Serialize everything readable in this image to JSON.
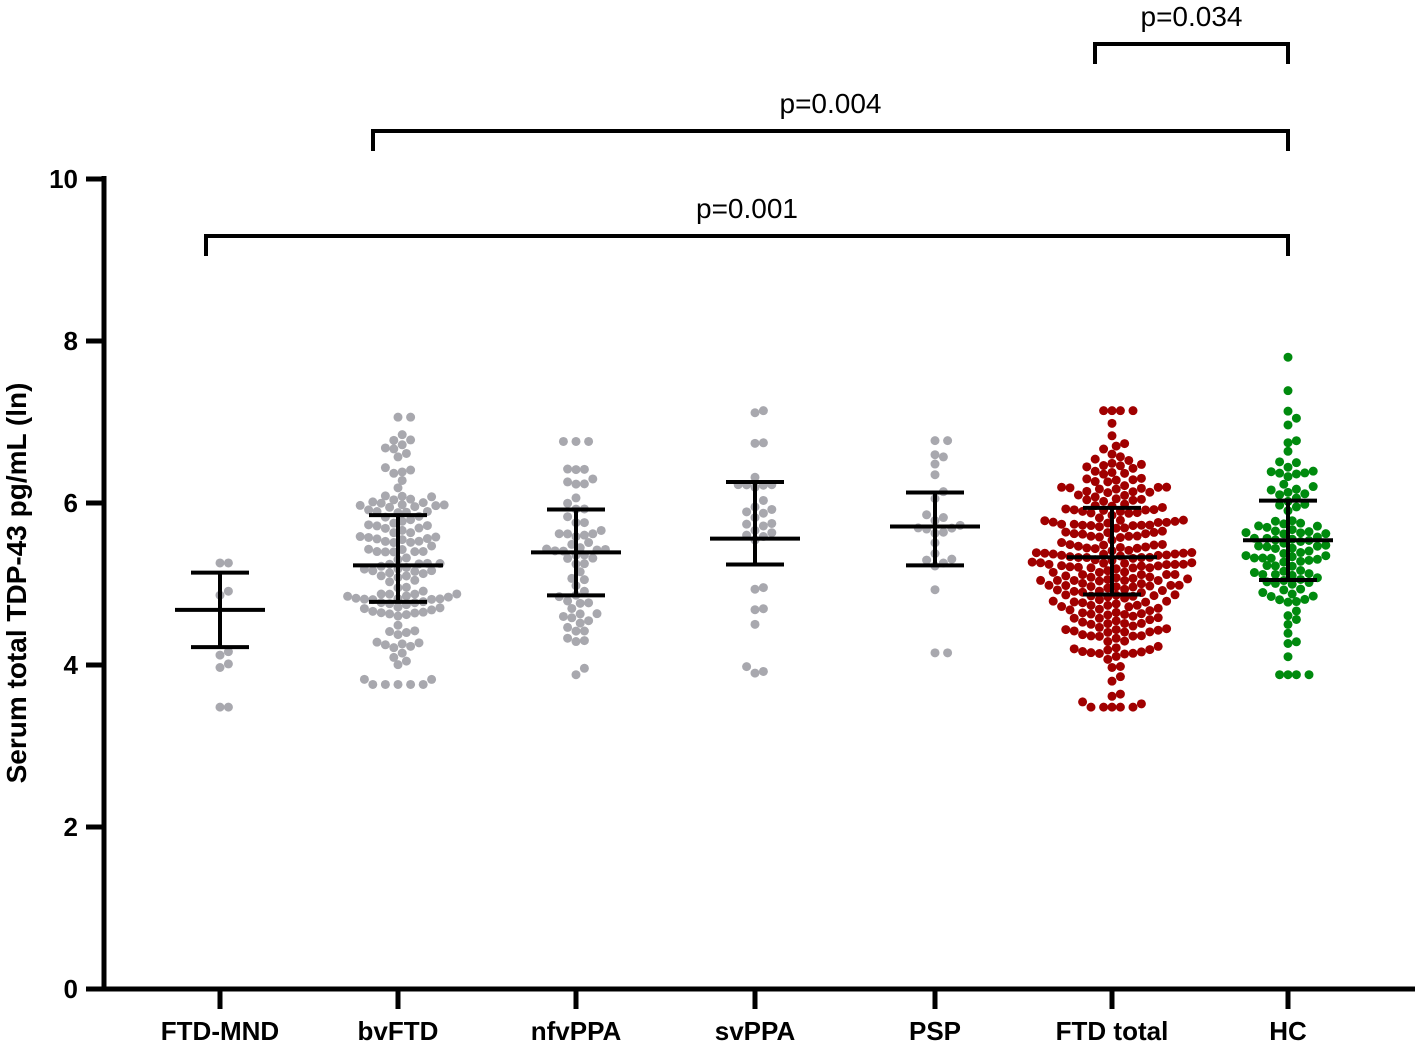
{
  "chart_data": {
    "type": "scatter",
    "title": "",
    "xlabel": "",
    "ylabel": "Serum total TDP-43 pg/mL (ln)",
    "ylim": [
      0,
      10
    ],
    "yticks": [
      0,
      2,
      4,
      6,
      8,
      10
    ],
    "grid": false,
    "legend": "none",
    "categories": [
      "FTD-MND",
      "bvFTD",
      "nfvPPA",
      "svPPA",
      "PSP",
      "FTD total",
      "HC"
    ],
    "groups": [
      {
        "category": "FTD-MND",
        "color": "#a8a8ae",
        "n": 10,
        "median": 4.68,
        "q1": 4.22,
        "q3": 5.14,
        "min": 3.48,
        "max": 5.26
      },
      {
        "category": "bvFTD",
        "color": "#a8a8ae",
        "n": 140,
        "median": 5.23,
        "q1": 4.78,
        "q3": 5.85,
        "min": 3.76,
        "max": 7.06
      },
      {
        "category": "nfvPPA",
        "color": "#a8a8ae",
        "n": 62,
        "median": 5.39,
        "q1": 4.86,
        "q3": 5.92,
        "min": 3.88,
        "max": 6.76
      },
      {
        "category": "svPPA",
        "color": "#a8a8ae",
        "n": 32,
        "median": 5.56,
        "q1": 5.24,
        "q3": 6.26,
        "min": 3.9,
        "max": 7.14
      },
      {
        "category": "PSP",
        "color": "#a8a8ae",
        "n": 26,
        "median": 5.71,
        "q1": 5.23,
        "q3": 6.13,
        "min": 4.15,
        "max": 6.77
      },
      {
        "category": "FTD total",
        "color": "#a00000",
        "n": 270,
        "median": 5.33,
        "q1": 4.87,
        "q3": 5.94,
        "min": 3.48,
        "max": 7.14
      },
      {
        "category": "HC",
        "color": "#008a0e",
        "n": 110,
        "median": 5.54,
        "q1": 5.05,
        "q3": 6.03,
        "min": 3.88,
        "max": 7.8
      }
    ],
    "comparisons": [
      {
        "from": "FTD-MND",
        "to": "HC",
        "label": "p=0.001"
      },
      {
        "from": "bvFTD",
        "to": "HC",
        "label": "p=0.004"
      },
      {
        "from": "FTD total",
        "to": "HC",
        "label": "p=0.034"
      }
    ]
  }
}
